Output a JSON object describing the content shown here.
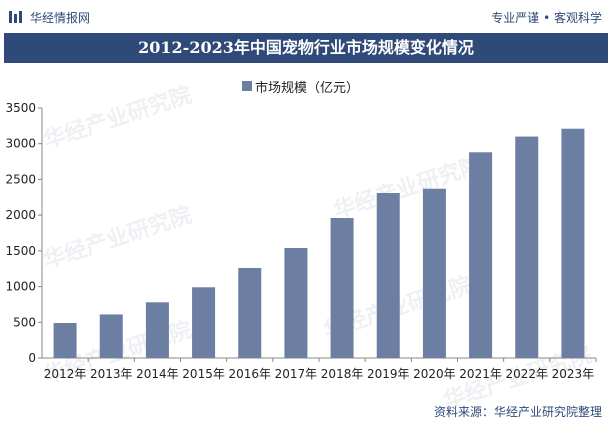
{
  "header": {
    "brand": "华经情报网",
    "tagline": "专业严谨 • 客观科学"
  },
  "watermark_text": "华经产业研究院",
  "chart_data": {
    "type": "bar",
    "title": "2012-2023年中国宠物行业市场规模变化情况",
    "categories": [
      "2012年",
      "2013年",
      "2014年",
      "2015年",
      "2016年",
      "2017年",
      "2018年",
      "2019年",
      "2020年",
      "2021年",
      "2022年",
      "2023年"
    ],
    "series": [
      {
        "name": "市场规模（亿元）",
        "values": [
          490,
          610,
          780,
          990,
          1260,
          1540,
          1960,
          2310,
          2370,
          2880,
          3100,
          3210
        ]
      }
    ],
    "yticks": [
      "0",
      "500",
      "1000",
      "1500",
      "2000",
      "2500",
      "3000",
      "3500"
    ],
    "ylim": [
      0,
      3500
    ],
    "grid": false,
    "legend": "top-center",
    "colors": {
      "bar": "#6d7ea3",
      "title_bg": "#2f4a78"
    }
  },
  "footer": {
    "source": "资料来源：华经产业研究院整理"
  }
}
